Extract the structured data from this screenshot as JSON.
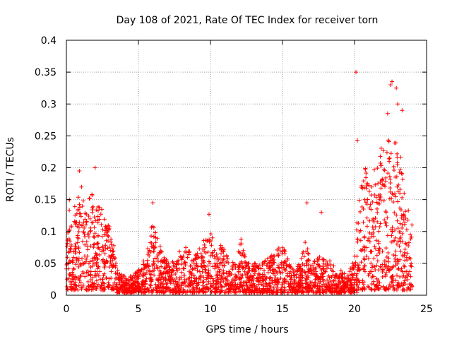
{
  "chart_data": {
    "type": "scatter",
    "title": "Day 108 of 2021, Rate Of TEC Index for receiver torn",
    "xlabel": "GPS time / hours",
    "ylabel": "ROTI / TECUs",
    "xlim": [
      0,
      25
    ],
    "ylim": [
      0,
      0.4
    ],
    "xticks": [
      0,
      5,
      10,
      15,
      20,
      25
    ],
    "xtick_labels": [
      "0",
      "5",
      "10",
      "15",
      "20",
      "25"
    ],
    "yticks": [
      0,
      0.05,
      0.1,
      0.15,
      0.2,
      0.25,
      0.3,
      0.35,
      0.4
    ],
    "ytick_labels": [
      "0",
      "0.05",
      "0.1",
      "0.15",
      "0.2",
      "0.25",
      "0.3",
      "0.35",
      "0.4"
    ],
    "grid": true,
    "marker": "+",
    "marker_color": "#ff0000",
    "series": [
      {
        "name": "ROTI",
        "description_envelope": "Dense scatter from 0 to 24 h; typical upper envelope (hour, ROTI) given in envelope_points",
        "envelope_points": [
          [
            0.0,
            0.12
          ],
          [
            0.1,
            0.17
          ],
          [
            0.25,
            0.16
          ],
          [
            0.5,
            0.14
          ],
          [
            0.8,
            0.15
          ],
          [
            1.0,
            0.18
          ],
          [
            1.3,
            0.13
          ],
          [
            1.7,
            0.17
          ],
          [
            2.0,
            0.15
          ],
          [
            2.4,
            0.14
          ],
          [
            2.8,
            0.13
          ],
          [
            3.2,
            0.09
          ],
          [
            3.6,
            0.04
          ],
          [
            4.0,
            0.03
          ],
          [
            4.5,
            0.03
          ],
          [
            5.0,
            0.04
          ],
          [
            5.5,
            0.06
          ],
          [
            6.0,
            0.12
          ],
          [
            6.3,
            0.09
          ],
          [
            6.8,
            0.06
          ],
          [
            7.2,
            0.05
          ],
          [
            7.8,
            0.07
          ],
          [
            8.3,
            0.08
          ],
          [
            8.8,
            0.06
          ],
          [
            9.3,
            0.08
          ],
          [
            9.7,
            0.09
          ],
          [
            10.0,
            0.11
          ],
          [
            10.3,
            0.07
          ],
          [
            10.8,
            0.08
          ],
          [
            11.3,
            0.06
          ],
          [
            11.8,
            0.05
          ],
          [
            12.1,
            0.09
          ],
          [
            12.5,
            0.05
          ],
          [
            13.0,
            0.05
          ],
          [
            13.5,
            0.05
          ],
          [
            14.0,
            0.06
          ],
          [
            14.5,
            0.07
          ],
          [
            15.0,
            0.08
          ],
          [
            15.5,
            0.05
          ],
          [
            16.0,
            0.04
          ],
          [
            16.6,
            0.09
          ],
          [
            17.0,
            0.05
          ],
          [
            17.5,
            0.06
          ],
          [
            18.0,
            0.06
          ],
          [
            18.5,
            0.05
          ],
          [
            19.0,
            0.04
          ],
          [
            19.5,
            0.03
          ],
          [
            20.0,
            0.06
          ],
          [
            20.4,
            0.2
          ],
          [
            20.8,
            0.2
          ],
          [
            21.2,
            0.18
          ],
          [
            21.6,
            0.22
          ],
          [
            22.0,
            0.24
          ],
          [
            22.4,
            0.27
          ],
          [
            22.8,
            0.25
          ],
          [
            23.2,
            0.22
          ],
          [
            23.6,
            0.15
          ],
          [
            24.0,
            0.12
          ]
        ],
        "notable_points": [
          [
            0.9,
            0.195
          ],
          [
            2.0,
            0.2
          ],
          [
            6.0,
            0.145
          ],
          [
            9.9,
            0.127
          ],
          [
            16.7,
            0.145
          ],
          [
            17.7,
            0.13
          ],
          [
            20.1,
            0.35
          ],
          [
            20.2,
            0.243
          ],
          [
            22.6,
            0.335
          ],
          [
            22.5,
            0.33
          ],
          [
            22.9,
            0.325
          ],
          [
            23.0,
            0.3
          ],
          [
            23.3,
            0.29
          ],
          [
            22.3,
            0.285
          ]
        ]
      }
    ]
  }
}
